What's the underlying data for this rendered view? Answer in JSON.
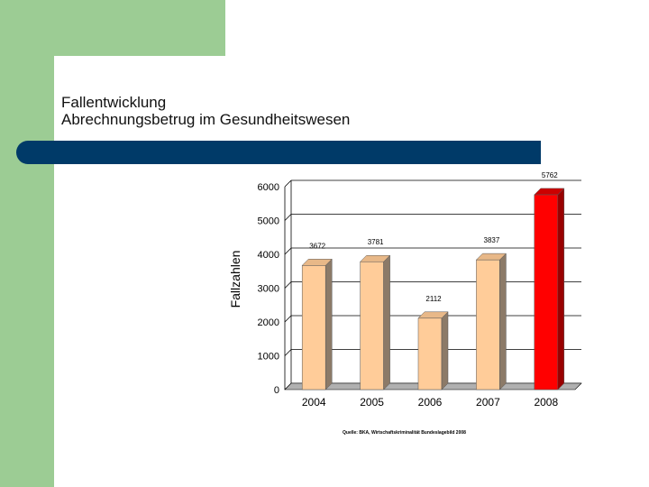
{
  "slide": {
    "title_line1": "Fallentwicklung",
    "title_line2": "Abrechnungsbetrug im Gesundheitswesen",
    "source": "Quelle: BKA, Wirtschaftskriminalität Bundeslagebild 2008"
  },
  "colors": {
    "green_accent": "#9ccc94",
    "blue_bar": "#003a68",
    "bar_fill": "#ffcc99",
    "bar_side": "#8c7a68",
    "highlight_fill": "#ff0000",
    "highlight_side": "#990000"
  },
  "chart_data": {
    "type": "bar",
    "categories": [
      "2004",
      "2005",
      "2006",
      "2007",
      "2008"
    ],
    "values": [
      3672,
      3781,
      2112,
      3837,
      5762
    ],
    "data_labels": [
      "3672",
      "3781",
      "2112",
      "3837",
      "5762"
    ],
    "highlight_index": 4,
    "ylabel": "Fallzahlen",
    "ylim": [
      0,
      6000
    ],
    "yticks": [
      0,
      1000,
      2000,
      3000,
      4000,
      5000,
      6000
    ],
    "ytick_labels": [
      "0",
      "1000",
      "2000",
      "3000",
      "4000",
      "5000",
      "6000"
    ],
    "grid": true,
    "style": "3d-bar"
  }
}
